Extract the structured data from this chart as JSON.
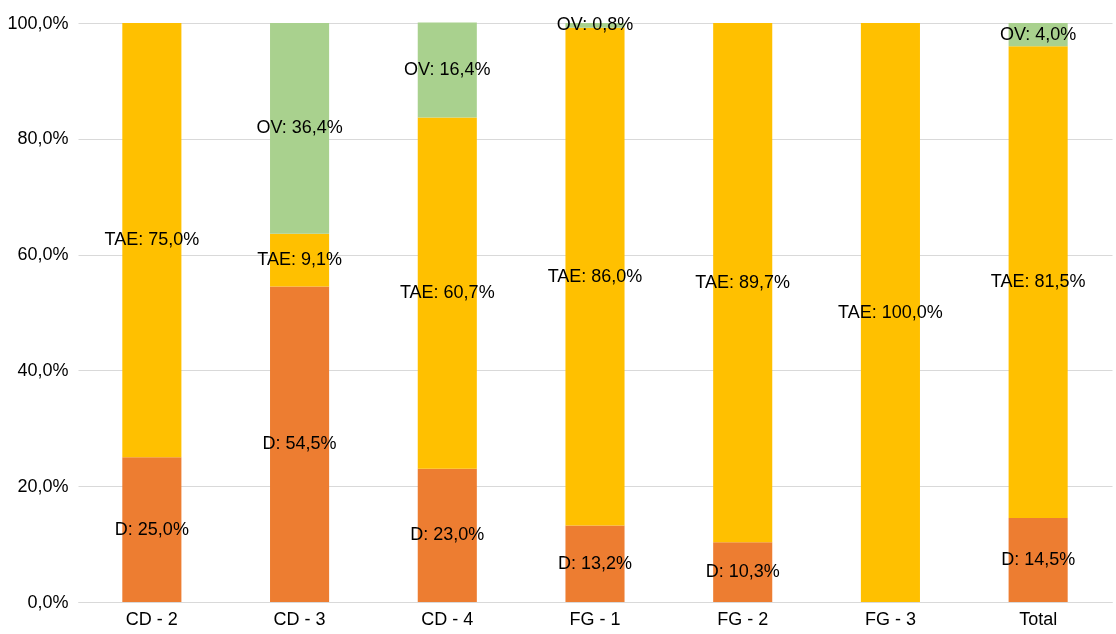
{
  "chart_data": {
    "type": "bar",
    "stacked": true,
    "categories": [
      "CD - 2",
      "CD - 3",
      "CD - 4",
      "FG - 1",
      "FG - 2",
      "FG - 3",
      "Total"
    ],
    "series": [
      {
        "color": "#ed7d31",
        "values": [
          25.0,
          54.5,
          23.0,
          13.2,
          10.3,
          0,
          14.5
        ],
        "value_labels": [
          "D: 25,0%",
          "D: 54,5%",
          "D: 23,0%",
          "D: 13,2%",
          "D: 10,3%",
          null,
          "D: 14,5%"
        ]
      },
      {
        "color": "#ffc000",
        "values": [
          75.0,
          9.1,
          60.7,
          86.0,
          89.7,
          100.0,
          81.5
        ],
        "value_labels": [
          "TAE: 75,0%",
          "TAE: 9,1%",
          "TAE: 60,7%",
          "TAE: 86,0%",
          "TAE: 89,7%",
          "TAE: 100,0%",
          "TAE: 81,5%"
        ]
      },
      {
        "color": "#a9d18e",
        "values": [
          0,
          36.4,
          16.4,
          0.8,
          0,
          0,
          4.0
        ],
        "value_labels": [
          null,
          "OV: 36,4%",
          "OV: 16,4%",
          "OV: 0,8%",
          null,
          null,
          "OV: 4,0%"
        ]
      }
    ],
    "ylim": [
      0,
      100
    ],
    "yticks": [
      {
        "value": 0,
        "label": "0,0%"
      },
      {
        "value": 20,
        "label": "20,0%"
      },
      {
        "value": 40,
        "label": "40,0%"
      },
      {
        "value": 60,
        "label": "60,0%"
      },
      {
        "value": 80,
        "label": "80,0%"
      },
      {
        "value": 100,
        "label": "100,0%"
      }
    ],
    "grid": "y",
    "legend": false
  }
}
